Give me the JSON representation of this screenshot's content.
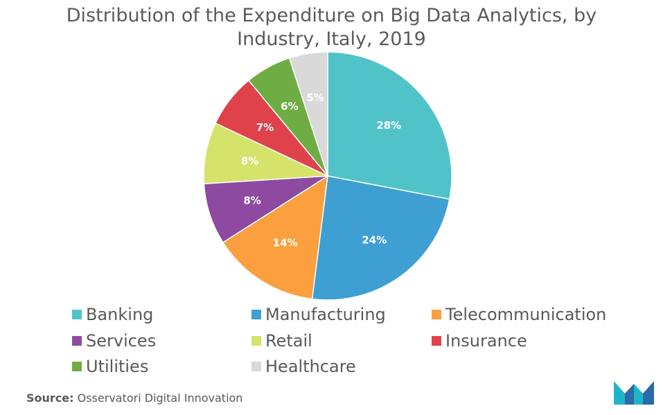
{
  "title_line1": "Distribution of the Expenditure on Big Data Analytics, by",
  "title_line2": "Industry, Italy, 2019",
  "source": {
    "label": "Source:",
    "text": "Osservatori Digital Innovation"
  },
  "chart_data": {
    "type": "pie",
    "title": "Distribution of the Expenditure on Big Data Analytics, by Industry, Italy, 2019",
    "legend_position": "bottom",
    "slices": [
      {
        "name": "Banking",
        "value": 28,
        "label": "28%",
        "color": "#4fc3c8"
      },
      {
        "name": "Manufacturing",
        "value": 24,
        "label": "24%",
        "color": "#3e9fd3"
      },
      {
        "name": "Telecommunication",
        "value": 14,
        "label": "14%",
        "color": "#fb9f3f"
      },
      {
        "name": "Services",
        "value": 8,
        "label": "8%",
        "color": "#8e4aa0"
      },
      {
        "name": "Retail",
        "value": 8,
        "label": "8%",
        "color": "#d5e36b"
      },
      {
        "name": "Insurance",
        "value": 7,
        "label": "7%",
        "color": "#e0424b"
      },
      {
        "name": "Utilities",
        "value": 6,
        "label": "6%",
        "color": "#6ead43"
      },
      {
        "name": "Healthcare",
        "value": 5,
        "label": "5%",
        "color": "#d9d9d9"
      }
    ]
  },
  "logo": {
    "icon": "mordor-intelligence-logo-icon",
    "colors": [
      "#1fb5c9",
      "#2a6aa8"
    ]
  }
}
